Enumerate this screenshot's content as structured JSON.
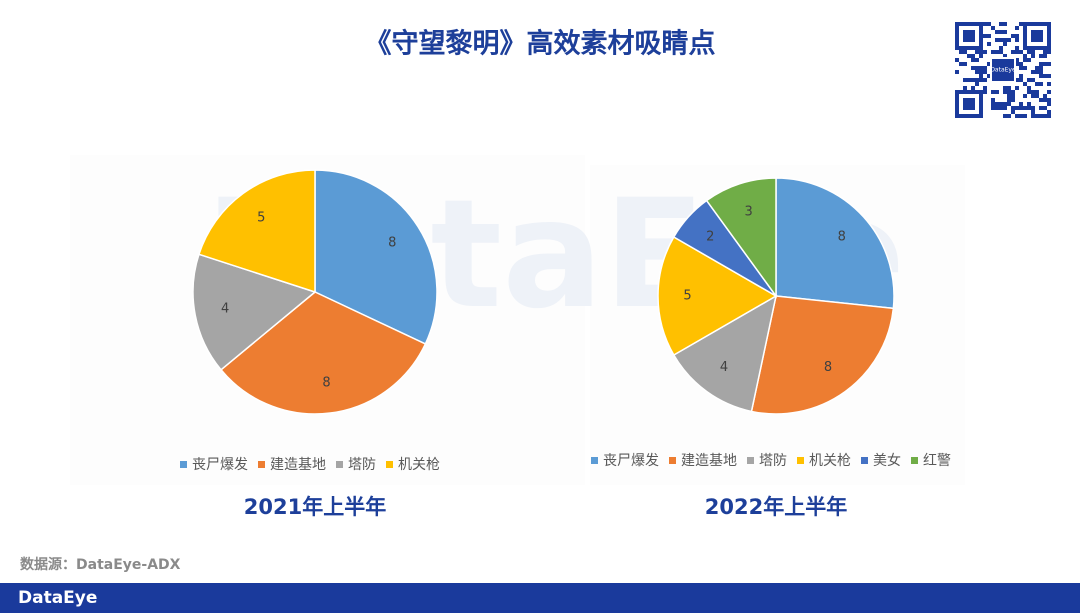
{
  "title": "《守望黎明》高效素材吸睛点",
  "watermark": "DataEye",
  "qr_label": "DataEye",
  "source": "数据源：DataEye-ADX",
  "footer": "DataEye",
  "chart_data": [
    {
      "type": "pie",
      "title": "2021年上半年",
      "categories": [
        "丧尸爆发",
        "建造基地",
        "塔防",
        "机关枪"
      ],
      "values": [
        8,
        8,
        4,
        5
      ],
      "colors": [
        "#5b9bd5",
        "#ed7d31",
        "#a5a5a5",
        "#ffc000"
      ]
    },
    {
      "type": "pie",
      "title": "2022年上半年",
      "categories": [
        "丧尸爆发",
        "建造基地",
        "塔防",
        "机关枪",
        "美女",
        "红警"
      ],
      "values": [
        8,
        8,
        4,
        5,
        2,
        3
      ],
      "colors": [
        "#5b9bd5",
        "#ed7d31",
        "#a5a5a5",
        "#ffc000",
        "#4472c4",
        "#70ad47"
      ]
    }
  ]
}
